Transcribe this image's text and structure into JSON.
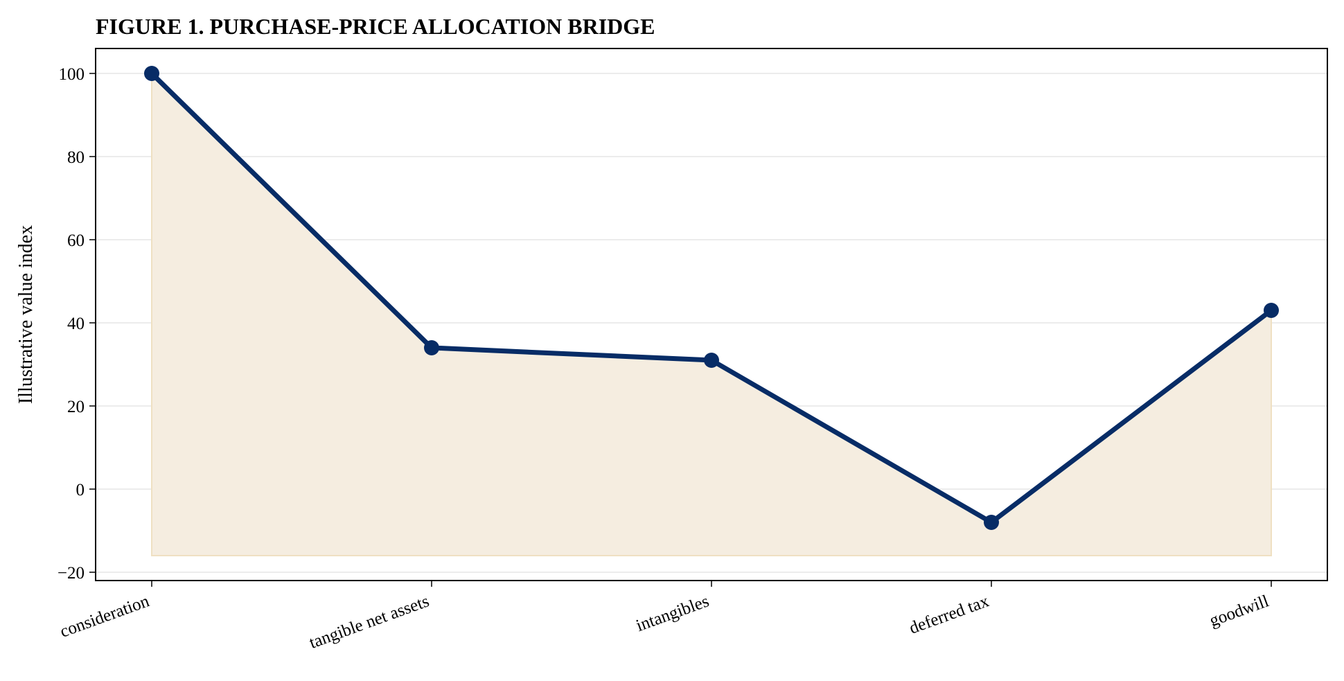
{
  "chart_data": {
    "type": "line",
    "title": "FIGURE 1. PURCHASE-PRICE ALLOCATION BRIDGE",
    "xlabel": "",
    "ylabel": "Illustrative value index",
    "categories": [
      "consideration",
      "tangible net assets",
      "intangibles",
      "deferred tax",
      "goodwill"
    ],
    "values": [
      100,
      34,
      31,
      -8,
      43
    ],
    "fill_baseline": -16,
    "ylim": [
      -22,
      106
    ],
    "yticks": [
      -20,
      0,
      20,
      40,
      60,
      80,
      100
    ],
    "ytick_labels": [
      "−20",
      "0",
      "20",
      "40",
      "60",
      "80",
      "100"
    ],
    "grid": true,
    "line_color": "#072c66",
    "fill_color": "#f5ede0",
    "fill_edge_color": "#efe0c2"
  }
}
